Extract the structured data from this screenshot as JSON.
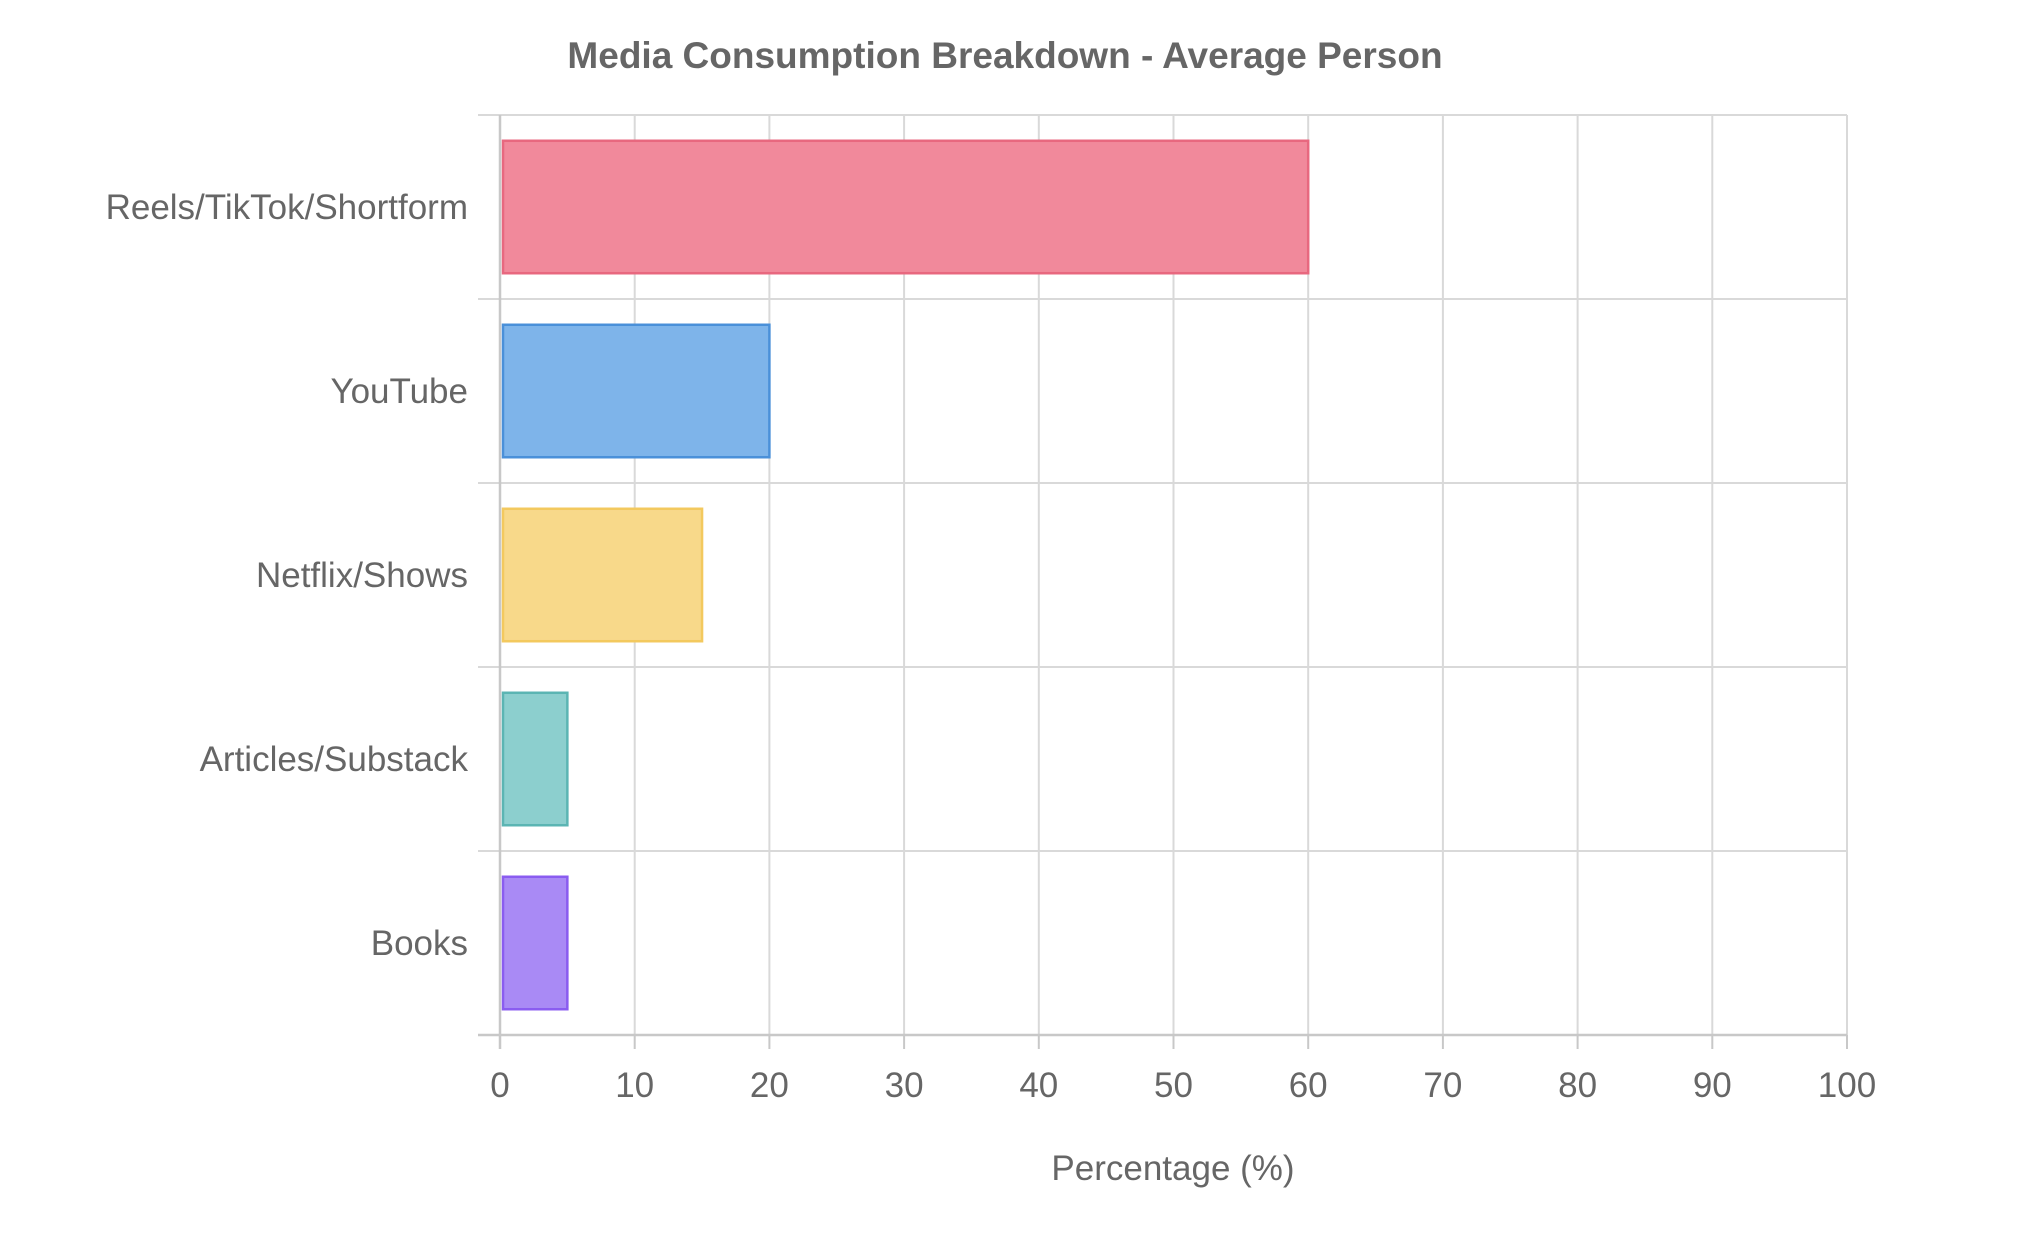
{
  "chart_data": {
    "type": "bar",
    "orientation": "horizontal",
    "title": "Media Consumption Breakdown - Average Person",
    "xlabel": "Percentage (%)",
    "ylabel": "",
    "categories": [
      "Reels/TikTok/Shortform",
      "YouTube",
      "Netflix/Shows",
      "Articles/Substack",
      "Books"
    ],
    "values": [
      60,
      20,
      15,
      5,
      5
    ],
    "xlim": [
      0,
      100
    ],
    "xticks": [
      0,
      10,
      20,
      30,
      40,
      50,
      60,
      70,
      80,
      90,
      100
    ],
    "grid": true,
    "legend": "none",
    "colors": [
      {
        "fill": "#f1899b",
        "stroke": "#e8687f"
      },
      {
        "fill": "#7eb4ea",
        "stroke": "#4a90d9"
      },
      {
        "fill": "#f8d98a",
        "stroke": "#f3c95e"
      },
      {
        "fill": "#8ccfce",
        "stroke": "#5bb5b3"
      },
      {
        "fill": "#a98af5",
        "stroke": "#8a5cf0"
      }
    ]
  }
}
